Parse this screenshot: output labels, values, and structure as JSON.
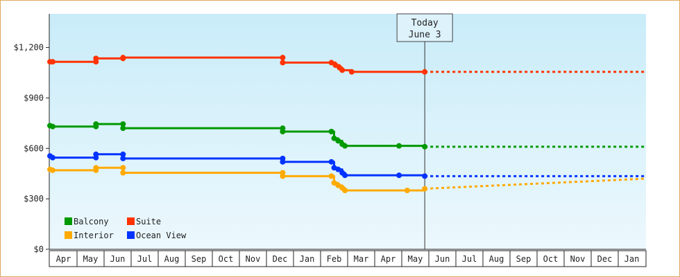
{
  "chart_data": {
    "type": "line",
    "title": "",
    "xlabel": "",
    "ylabel": "",
    "ylim": [
      0,
      1400
    ],
    "yticks": [
      {
        "value": 0,
        "label": "$0"
      },
      {
        "value": 300,
        "label": "$300"
      },
      {
        "value": 600,
        "label": "$600"
      },
      {
        "value": 900,
        "label": "$900"
      },
      {
        "value": 1200,
        "label": "$1,200"
      }
    ],
    "months": [
      "Apr",
      "May",
      "Jun",
      "Jul",
      "Aug",
      "Sep",
      "Oct",
      "Nov",
      "Dec",
      "Jan",
      "Feb",
      "Mar",
      "Apr",
      "May",
      "Jun",
      "Jul",
      "Aug",
      "Sep",
      "Oct",
      "Nov",
      "Dec",
      "Jan"
    ],
    "today": {
      "line1": "Today",
      "line2": "June 3",
      "month_index": 13.85
    },
    "forecast_end_index": 22,
    "grid": false,
    "legend_position": "bottom-left",
    "series": [
      {
        "name": "Suite",
        "color": "#ff3300",
        "points": [
          [
            0,
            1115
          ],
          [
            0.1,
            1115
          ],
          [
            1.7,
            1115
          ],
          [
            1.7,
            1135
          ],
          [
            2.7,
            1135
          ],
          [
            2.7,
            1140
          ],
          [
            8.6,
            1140
          ],
          [
            8.6,
            1110
          ],
          [
            10.4,
            1110
          ],
          [
            10.55,
            1095
          ],
          [
            10.7,
            1080
          ],
          [
            10.8,
            1065
          ],
          [
            11.15,
            1055
          ],
          [
            13.85,
            1055
          ]
        ],
        "forecast": [
          [
            13.85,
            1055
          ],
          [
            22,
            1055
          ]
        ]
      },
      {
        "name": "Balcony",
        "color": "#009900",
        "points": [
          [
            0,
            735
          ],
          [
            0.1,
            730
          ],
          [
            1.7,
            730
          ],
          [
            1.7,
            745
          ],
          [
            2.7,
            745
          ],
          [
            2.7,
            720
          ],
          [
            8.6,
            720
          ],
          [
            8.6,
            700
          ],
          [
            10.4,
            700
          ],
          [
            10.5,
            660
          ],
          [
            10.65,
            645
          ],
          [
            10.8,
            625
          ],
          [
            10.9,
            615
          ],
          [
            12.9,
            615
          ],
          [
            13.85,
            610
          ]
        ],
        "forecast": [
          [
            13.85,
            610
          ],
          [
            22,
            610
          ]
        ]
      },
      {
        "name": "Ocean View",
        "color": "#0033ff",
        "points": [
          [
            0,
            555
          ],
          [
            0.1,
            545
          ],
          [
            1.7,
            545
          ],
          [
            1.7,
            565
          ],
          [
            2.7,
            565
          ],
          [
            2.7,
            540
          ],
          [
            8.6,
            540
          ],
          [
            8.6,
            520
          ],
          [
            10.4,
            520
          ],
          [
            10.5,
            485
          ],
          [
            10.65,
            475
          ],
          [
            10.8,
            455
          ],
          [
            10.9,
            440
          ],
          [
            12.9,
            440
          ],
          [
            13.85,
            435
          ]
        ],
        "forecast": [
          [
            13.85,
            435
          ],
          [
            22,
            435
          ]
        ]
      },
      {
        "name": "Interior",
        "color": "#ffaa00",
        "points": [
          [
            0,
            475
          ],
          [
            0.1,
            470
          ],
          [
            1.7,
            470
          ],
          [
            1.7,
            485
          ],
          [
            2.7,
            485
          ],
          [
            2.7,
            455
          ],
          [
            8.6,
            455
          ],
          [
            8.6,
            435
          ],
          [
            10.4,
            435
          ],
          [
            10.5,
            395
          ],
          [
            10.65,
            380
          ],
          [
            10.8,
            365
          ],
          [
            10.9,
            350
          ],
          [
            13.2,
            350
          ],
          [
            13.85,
            360
          ]
        ],
        "forecast": [
          [
            13.85,
            360
          ],
          [
            22,
            420
          ]
        ]
      }
    ],
    "legend": [
      {
        "name": "Balcony",
        "color": "#009900"
      },
      {
        "name": "Suite",
        "color": "#ff3300"
      },
      {
        "name": "Interior",
        "color": "#ffaa00"
      },
      {
        "name": "Ocean View",
        "color": "#0033ff"
      }
    ]
  }
}
